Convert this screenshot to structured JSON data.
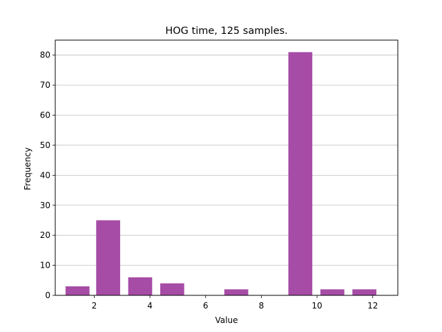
{
  "chart_data": {
    "type": "bar",
    "title": "HOG time, 125 samples.",
    "xlabel": "Value",
    "ylabel": "Frequency",
    "xlim": [
      0.6,
      12.9
    ],
    "ylim": [
      0,
      85
    ],
    "xticks": [
      2,
      4,
      6,
      8,
      10,
      12
    ],
    "yticks": [
      0,
      10,
      20,
      30,
      40,
      50,
      60,
      70,
      80
    ],
    "grid": "y-major",
    "bar_width": 1.0,
    "bar_color": "#a64ca6",
    "bars": [
      {
        "x": 1.4,
        "value": 3
      },
      {
        "x": 2.5,
        "value": 25
      },
      {
        "x": 3.65,
        "value": 6
      },
      {
        "x": 4.8,
        "value": 4
      },
      {
        "x": 5.95,
        "value": 0
      },
      {
        "x": 7.1,
        "value": 2
      },
      {
        "x": 8.25,
        "value": 0
      },
      {
        "x": 9.4,
        "value": 81
      },
      {
        "x": 10.55,
        "value": 2
      },
      {
        "x": 11.7,
        "value": 2
      }
    ]
  }
}
